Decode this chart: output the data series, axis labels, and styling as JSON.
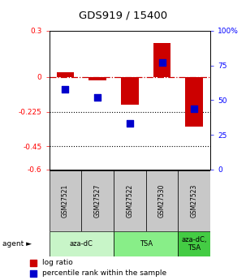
{
  "title": "GDS919 / 15400",
  "samples": [
    "GSM27521",
    "GSM27527",
    "GSM27522",
    "GSM27530",
    "GSM27523"
  ],
  "log_ratio": [
    0.03,
    -0.02,
    -0.18,
    0.22,
    -0.32
  ],
  "percentile_rank": [
    58,
    52,
    33,
    77,
    44
  ],
  "ylim_left": [
    -0.6,
    0.3
  ],
  "ylim_right": [
    0,
    100
  ],
  "yticks_left": [
    0.3,
    0.0,
    -0.225,
    -0.45,
    -0.6
  ],
  "yticks_right": [
    100,
    75,
    50,
    25,
    0
  ],
  "hlines": [
    -0.225,
    -0.45
  ],
  "agent_groups": [
    {
      "label": "aza-dC",
      "start": 0,
      "end": 2,
      "color": "#c8f5c8"
    },
    {
      "label": "TSA",
      "start": 2,
      "end": 4,
      "color": "#88ee88"
    },
    {
      "label": "aza-dC,\nTSA",
      "start": 4,
      "end": 5,
      "color": "#44cc44"
    }
  ],
  "bar_color": "#cc0000",
  "dot_color": "#0000cc",
  "dashed_line_color": "#cc0000",
  "sample_box_color": "#c8c8c8",
  "bar_width": 0.55
}
